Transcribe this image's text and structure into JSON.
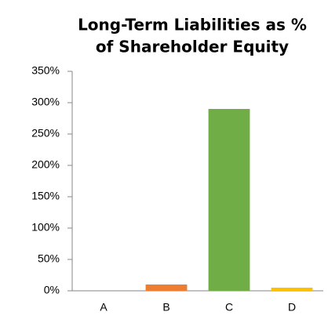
{
  "chart_data": {
    "type": "bar",
    "title": [
      "Long-Term Liabilities as %",
      "of  Shareholder Equity"
    ],
    "categories": [
      "A",
      "B",
      "C",
      "D"
    ],
    "values": [
      0,
      10,
      290,
      5
    ],
    "colors": [
      "#4472c4",
      "#ed7d31",
      "#70ad47",
      "#ffc000"
    ],
    "ylim": [
      0,
      350
    ],
    "yticks": [
      {
        "value": 0,
        "label": "0%"
      },
      {
        "value": 50,
        "label": "50%"
      },
      {
        "value": 100,
        "label": "100%"
      },
      {
        "value": 150,
        "label": "150%"
      },
      {
        "value": 200,
        "label": "200%"
      },
      {
        "value": 250,
        "label": "250%"
      },
      {
        "value": 300,
        "label": "300%"
      },
      {
        "value": 350,
        "label": "350%"
      }
    ],
    "grid": false
  }
}
